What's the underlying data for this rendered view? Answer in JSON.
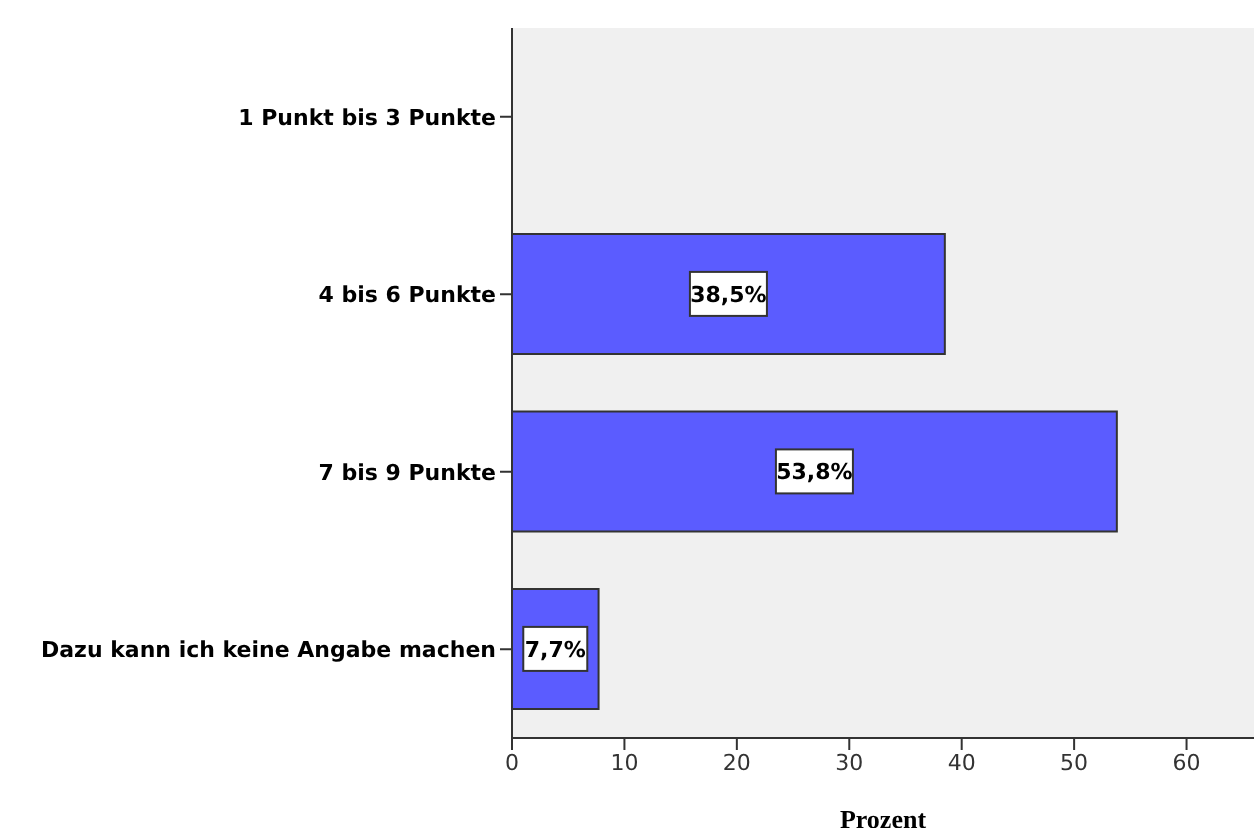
{
  "chart_data": {
    "type": "bar",
    "orientation": "horizontal",
    "xlabel": "Prozent",
    "categories": [
      "1 Punkt bis 3 Punkte",
      "4 bis 6 Punkte",
      "7 bis 9 Punkte",
      "Dazu kann ich keine Angabe machen"
    ],
    "values": [
      0,
      38.5,
      53.8,
      7.7
    ],
    "value_labels": [
      null,
      "38,5%",
      "53,8%",
      "7,7%"
    ],
    "color": "#5b5cff",
    "xlim": [
      0,
      66
    ],
    "xticks": [
      0,
      10,
      20,
      30,
      40,
      50,
      60
    ],
    "grid": false,
    "legend": false
  }
}
